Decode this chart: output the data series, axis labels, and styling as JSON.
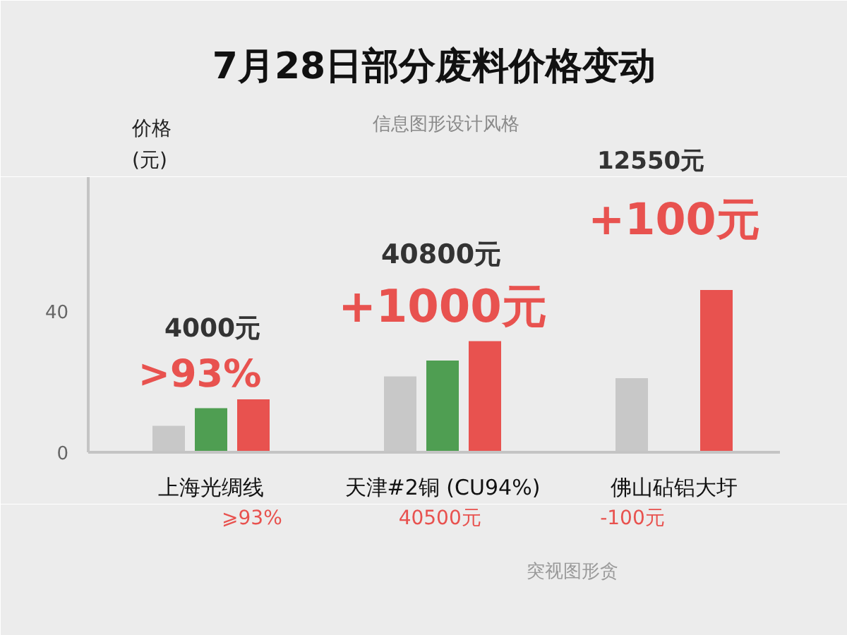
{
  "chart_data": {
    "type": "bar",
    "title": "7月28日部分废料价格变动",
    "ylabel": "价格\n(元)",
    "categories": [
      "上海光绸线",
      "天津#2铜 (CU94%)",
      "佛山砧铝大圩"
    ],
    "series": [
      {
        "color": "#c8c8c8",
        "values": [
          7.5,
          21.5,
          21
        ]
      },
      {
        "color": "#4f9e52",
        "values": [
          12.5,
          26,
          null
        ]
      },
      {
        "color": "#e8524f",
        "values": [
          15,
          31.5,
          46
        ]
      }
    ],
    "ylim": [
      0,
      78
    ],
    "yticks": [
      0,
      40
    ],
    "annotations": [
      "4000元",
      ">93%",
      "40800元",
      "+1000元",
      "12550元",
      "+100元",
      "⩾93%",
      "40500元",
      "-100元",
      "信息图形设计风格",
      "突视图形贪"
    ]
  }
}
